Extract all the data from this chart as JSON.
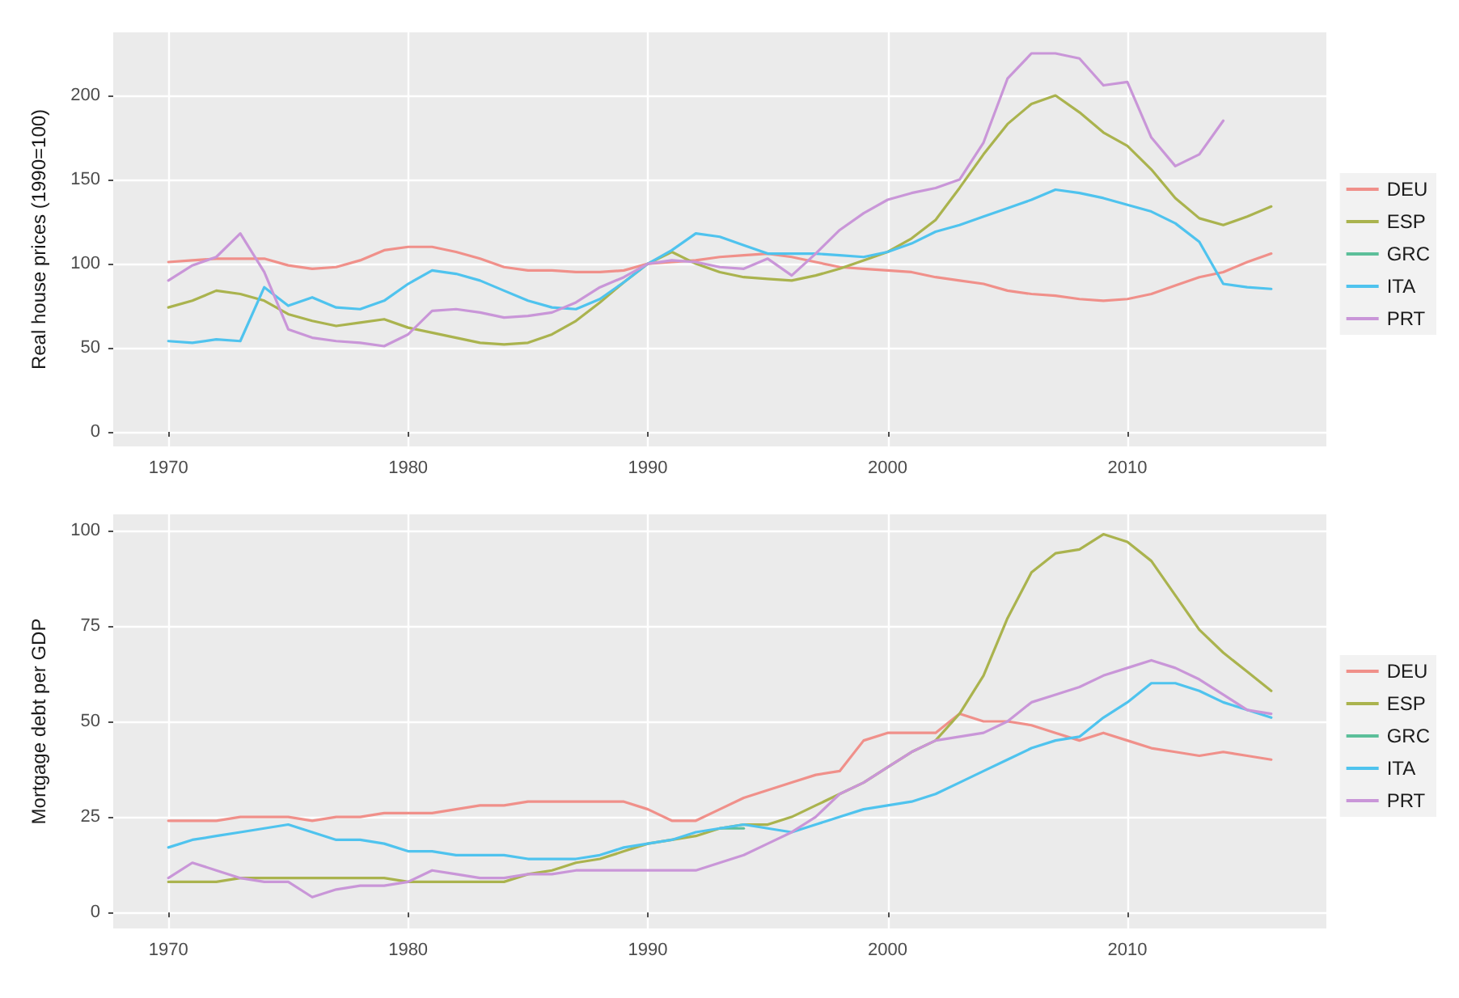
{
  "chart_data": [
    {
      "type": "line",
      "ylabel": "Real house prices (1990=100)",
      "x": [
        1970,
        1971,
        1972,
        1973,
        1974,
        1975,
        1976,
        1977,
        1978,
        1979,
        1980,
        1981,
        1982,
        1983,
        1984,
        1985,
        1986,
        1987,
        1988,
        1989,
        1990,
        1991,
        1992,
        1993,
        1994,
        1995,
        1996,
        1997,
        1998,
        1999,
        2000,
        2001,
        2002,
        2003,
        2004,
        2005,
        2006,
        2007,
        2008,
        2009,
        2010,
        2011,
        2012,
        2013,
        2014,
        2015,
        2016
      ],
      "xlim": [
        1967.7,
        2018.3
      ],
      "xticks": [
        1970,
        1980,
        1990,
        2000,
        2010
      ],
      "ylim": [
        -8.6,
        237.5
      ],
      "yticks": [
        0,
        50,
        100,
        150,
        200
      ],
      "grid": true,
      "legend": "right",
      "marker": "none",
      "line_style": "solid",
      "series": [
        {
          "name": "DEU",
          "color": "#f0908a",
          "values": [
            101,
            102,
            103,
            103,
            103,
            99,
            97,
            98,
            102,
            108,
            110,
            110,
            107,
            103,
            98,
            96,
            96,
            95,
            95,
            96,
            100,
            101,
            102,
            104,
            105,
            106,
            104,
            101,
            98,
            97,
            96,
            95,
            92,
            90,
            88,
            84,
            82,
            81,
            79,
            78,
            79,
            82,
            87,
            92,
            95,
            101,
            106
          ]
        },
        {
          "name": "ESP",
          "color": "#aab34e",
          "values": [
            74,
            78,
            84,
            82,
            78,
            70,
            66,
            63,
            65,
            67,
            62,
            59,
            56,
            53,
            52,
            53,
            58,
            66,
            77,
            89,
            100,
            107,
            100,
            95,
            92,
            91,
            90,
            93,
            97,
            102,
            107,
            115,
            126,
            145,
            165,
            183,
            195,
            200,
            190,
            178,
            170,
            156,
            139,
            127,
            123,
            128,
            134
          ]
        },
        {
          "name": "GRC",
          "color": "#5cbf9a",
          "values": [
            null,
            null,
            null,
            null,
            null,
            null,
            null,
            null,
            null,
            null,
            null,
            null,
            null,
            null,
            null,
            null,
            null,
            null,
            null,
            null,
            null,
            null,
            null,
            null,
            null,
            null,
            null,
            null,
            null,
            null,
            null,
            null,
            null,
            null,
            null,
            null,
            null,
            null,
            null,
            null,
            null,
            null,
            null,
            null,
            null,
            null,
            null
          ]
        },
        {
          "name": "ITA",
          "color": "#4fc3ee",
          "values": [
            54,
            53,
            55,
            54,
            86,
            75,
            80,
            74,
            73,
            78,
            88,
            96,
            94,
            90,
            84,
            78,
            74,
            73,
            79,
            89,
            100,
            108,
            118,
            116,
            111,
            106,
            106,
            106,
            105,
            104,
            107,
            112,
            119,
            123,
            128,
            133,
            138,
            144,
            142,
            139,
            135,
            131,
            124,
            113,
            88,
            86,
            85
          ]
        },
        {
          "name": "PRT",
          "color": "#c996d8",
          "values": [
            90,
            99,
            104,
            118,
            95,
            61,
            56,
            54,
            53,
            51,
            58,
            72,
            73,
            71,
            68,
            69,
            71,
            77,
            86,
            92,
            100,
            102,
            101,
            98,
            97,
            103,
            93,
            106,
            120,
            130,
            138,
            142,
            145,
            150,
            172,
            210,
            225,
            225,
            222,
            206,
            208,
            175,
            158,
            165,
            185,
            null,
            null
          ]
        }
      ]
    },
    {
      "type": "line",
      "ylabel": "Mortgage debt per GDP",
      "x": [
        1970,
        1971,
        1972,
        1973,
        1974,
        1975,
        1976,
        1977,
        1978,
        1979,
        1980,
        1981,
        1982,
        1983,
        1984,
        1985,
        1986,
        1987,
        1988,
        1989,
        1990,
        1991,
        1992,
        1993,
        1994,
        1995,
        1996,
        1997,
        1998,
        1999,
        2000,
        2001,
        2002,
        2003,
        2004,
        2005,
        2006,
        2007,
        2008,
        2009,
        2010,
        2011,
        2012,
        2013,
        2014,
        2015,
        2016
      ],
      "xlim": [
        1967.7,
        2018.3
      ],
      "xticks": [
        1970,
        1980,
        1990,
        2000,
        2010
      ],
      "ylim": [
        -4.2,
        104.2
      ],
      "yticks": [
        0,
        25,
        50,
        75,
        100
      ],
      "grid": true,
      "legend": "right",
      "marker": "none",
      "line_style": "solid",
      "series": [
        {
          "name": "DEU",
          "color": "#f0908a",
          "values": [
            24,
            24,
            24,
            25,
            25,
            25,
            24,
            25,
            25,
            26,
            26,
            26,
            27,
            28,
            28,
            29,
            29,
            29,
            29,
            29,
            27,
            24,
            24,
            27,
            30,
            32,
            34,
            36,
            37,
            45,
            47,
            47,
            47,
            52,
            50,
            50,
            49,
            47,
            45,
            47,
            45,
            43,
            42,
            41,
            42,
            41,
            40
          ]
        },
        {
          "name": "ESP",
          "color": "#aab34e",
          "values": [
            8,
            8,
            8,
            9,
            9,
            9,
            9,
            9,
            9,
            9,
            8,
            8,
            8,
            8,
            8,
            10,
            11,
            13,
            14,
            16,
            18,
            19,
            20,
            22,
            23,
            23,
            25,
            28,
            31,
            34,
            38,
            42,
            45,
            52,
            62,
            77,
            89,
            94,
            95,
            99,
            97,
            92,
            83,
            74,
            68,
            63,
            58
          ]
        },
        {
          "name": "GRC",
          "color": "#5cbf9a",
          "values": [
            null,
            null,
            null,
            null,
            null,
            null,
            null,
            null,
            null,
            null,
            null,
            null,
            null,
            null,
            null,
            null,
            null,
            null,
            null,
            null,
            null,
            null,
            null,
            22,
            22,
            null,
            null,
            null,
            null,
            null,
            null,
            null,
            null,
            null,
            null,
            null,
            null,
            null,
            null,
            null,
            null,
            null,
            null,
            null,
            null,
            null,
            null
          ]
        },
        {
          "name": "ITA",
          "color": "#4fc3ee",
          "values": [
            17,
            19,
            20,
            21,
            22,
            23,
            21,
            19,
            19,
            18,
            16,
            16,
            15,
            15,
            15,
            14,
            14,
            14,
            15,
            17,
            18,
            19,
            21,
            22,
            23,
            22,
            21,
            23,
            25,
            27,
            28,
            29,
            31,
            34,
            37,
            40,
            43,
            45,
            46,
            51,
            55,
            60,
            60,
            58,
            55,
            53,
            51
          ]
        },
        {
          "name": "PRT",
          "color": "#c996d8",
          "values": [
            9,
            13,
            11,
            9,
            8,
            8,
            4,
            6,
            7,
            7,
            8,
            11,
            10,
            9,
            9,
            10,
            10,
            11,
            11,
            11,
            11,
            11,
            11,
            13,
            15,
            18,
            21,
            25,
            31,
            34,
            38,
            42,
            45,
            46,
            47,
            50,
            55,
            57,
            59,
            62,
            64,
            66,
            64,
            61,
            57,
            53,
            52
          ]
        }
      ]
    }
  ]
}
